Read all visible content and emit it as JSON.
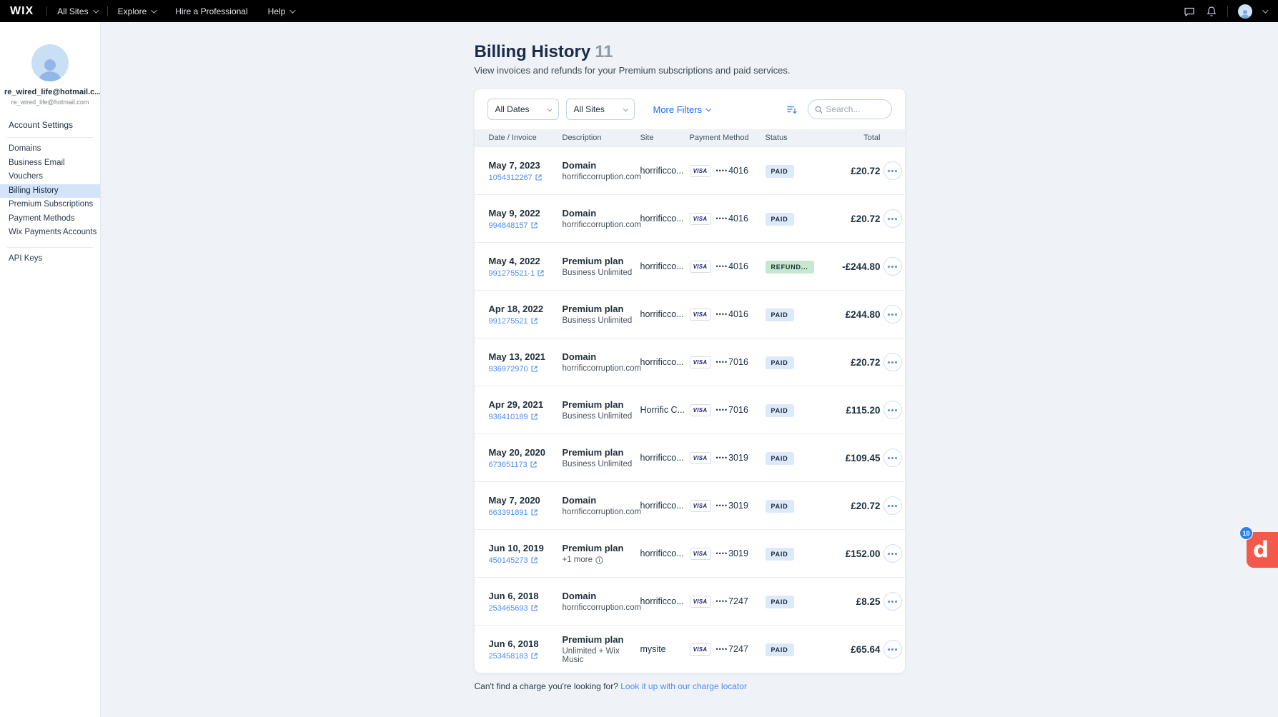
{
  "colors": {
    "accent": "#116DFF",
    "link": "#4C8DF5",
    "active_bg": "#D3E4FA",
    "paid_bg": "#DCE9FB",
    "refund_bg": "#C5E8CF",
    "widget_bg": "#F2594B",
    "widget_badge_bg": "#2B81EB"
  },
  "topbar": {
    "logo": "WIX",
    "menus": [
      {
        "label": "All Sites",
        "chevron": true
      },
      {
        "label": "Explore",
        "chevron": true
      },
      {
        "label": "Hire a Professional",
        "chevron": false
      },
      {
        "label": "Help",
        "chevron": true
      }
    ]
  },
  "sidebar": {
    "account_name": "re_wired_life@hotmail.c...",
    "account_email": "re_wired_life@hotmail.com",
    "section_title": "Account Settings",
    "items": [
      {
        "label": "Domains",
        "active": false
      },
      {
        "label": "Business Email",
        "active": false
      },
      {
        "label": "Vouchers",
        "active": false
      },
      {
        "label": "Billing History",
        "active": true
      },
      {
        "label": "Premium Subscriptions",
        "active": false
      },
      {
        "label": "Payment Methods",
        "active": false
      },
      {
        "label": "Wix Payments Accounts",
        "active": false
      }
    ],
    "bottom_items": [
      {
        "label": "API Keys",
        "active": false
      }
    ]
  },
  "header": {
    "title": "Billing History",
    "count": "11",
    "subtitle": "View invoices and refunds for your Premium subscriptions and paid services."
  },
  "filters": {
    "date_filter": "All Dates",
    "site_filter": "All Sites",
    "more_filters_label": "More Filters",
    "search_placeholder": "Search..."
  },
  "table": {
    "columns": [
      "Date / Invoice",
      "Description",
      "Site",
      "Payment Method",
      "Status",
      "Total"
    ],
    "card_mask": "••••",
    "rows": [
      {
        "date": "May 7, 2023",
        "invoice": "1054312267",
        "desc": "Domain",
        "desc_sub": "horrificcorruption.com",
        "has_info": false,
        "site": "horrificco...",
        "brand": "VISA",
        "digits": "4016",
        "status": "PAID",
        "status_type": "paid",
        "total": "£20.72"
      },
      {
        "date": "May 9, 2022",
        "invoice": "994848157",
        "desc": "Domain",
        "desc_sub": "horrificcorruption.com",
        "has_info": false,
        "site": "horrificco...",
        "brand": "VISA",
        "digits": "4016",
        "status": "PAID",
        "status_type": "paid",
        "total": "£20.72"
      },
      {
        "date": "May 4, 2022",
        "invoice": "991275521-1",
        "desc": "Premium plan",
        "desc_sub": "Business Unlimited",
        "has_info": false,
        "site": "horrificco...",
        "brand": "VISA",
        "digits": "4016",
        "status": "REFUND...",
        "status_type": "refund",
        "total": "-£244.80"
      },
      {
        "date": "Apr 18, 2022",
        "invoice": "991275521",
        "desc": "Premium plan",
        "desc_sub": "Business Unlimited",
        "has_info": false,
        "site": "horrificco...",
        "brand": "VISA",
        "digits": "4016",
        "status": "PAID",
        "status_type": "paid",
        "total": "£244.80"
      },
      {
        "date": "May 13, 2021",
        "invoice": "936972970",
        "desc": "Domain",
        "desc_sub": "horrificcorruption.com",
        "has_info": false,
        "site": "horrificco...",
        "brand": "VISA",
        "digits": "7016",
        "status": "PAID",
        "status_type": "paid",
        "total": "£20.72"
      },
      {
        "date": "Apr 29, 2021",
        "invoice": "936410189",
        "desc": "Premium plan",
        "desc_sub": "Business Unlimited",
        "has_info": false,
        "site": "Horrific C...",
        "brand": "VISA",
        "digits": "7016",
        "status": "PAID",
        "status_type": "paid",
        "total": "£115.20"
      },
      {
        "date": "May 20, 2020",
        "invoice": "673651173",
        "desc": "Premium plan",
        "desc_sub": "Business Unlimited",
        "has_info": false,
        "site": "horrificco...",
        "brand": "VISA",
        "digits": "3019",
        "status": "PAID",
        "status_type": "paid",
        "total": "£109.45"
      },
      {
        "date": "May 7, 2020",
        "invoice": "663391891",
        "desc": "Domain",
        "desc_sub": "horrificcorruption.com",
        "has_info": false,
        "site": "horrificco...",
        "brand": "VISA",
        "digits": "3019",
        "status": "PAID",
        "status_type": "paid",
        "total": "£20.72"
      },
      {
        "date": "Jun 10, 2019",
        "invoice": "450145273",
        "desc": "Premium plan",
        "desc_sub": "+1 more",
        "has_info": true,
        "site": "horrificco...",
        "brand": "VISA",
        "digits": "3019",
        "status": "PAID",
        "status_type": "paid",
        "total": "£152.00"
      },
      {
        "date": "Jun 6, 2018",
        "invoice": "253465693",
        "desc": "Domain",
        "desc_sub": "horrificcorruption.com",
        "has_info": false,
        "site": "horrificco...",
        "brand": "VISA",
        "digits": "7247",
        "status": "PAID",
        "status_type": "paid",
        "total": "£8.25"
      },
      {
        "date": "Jun 6, 2018",
        "invoice": "253458183",
        "desc": "Premium plan",
        "desc_sub": "Unlimited + Wix Music",
        "has_info": false,
        "site": "mysite",
        "brand": "VISA",
        "digits": "7247",
        "status": "PAID",
        "status_type": "paid",
        "total": "£65.64"
      }
    ]
  },
  "footer": {
    "text": "Can't find a charge you're looking for?",
    "link_label": "Look it up with our charge locator"
  },
  "widget": {
    "letter": "d",
    "badge": "10"
  }
}
